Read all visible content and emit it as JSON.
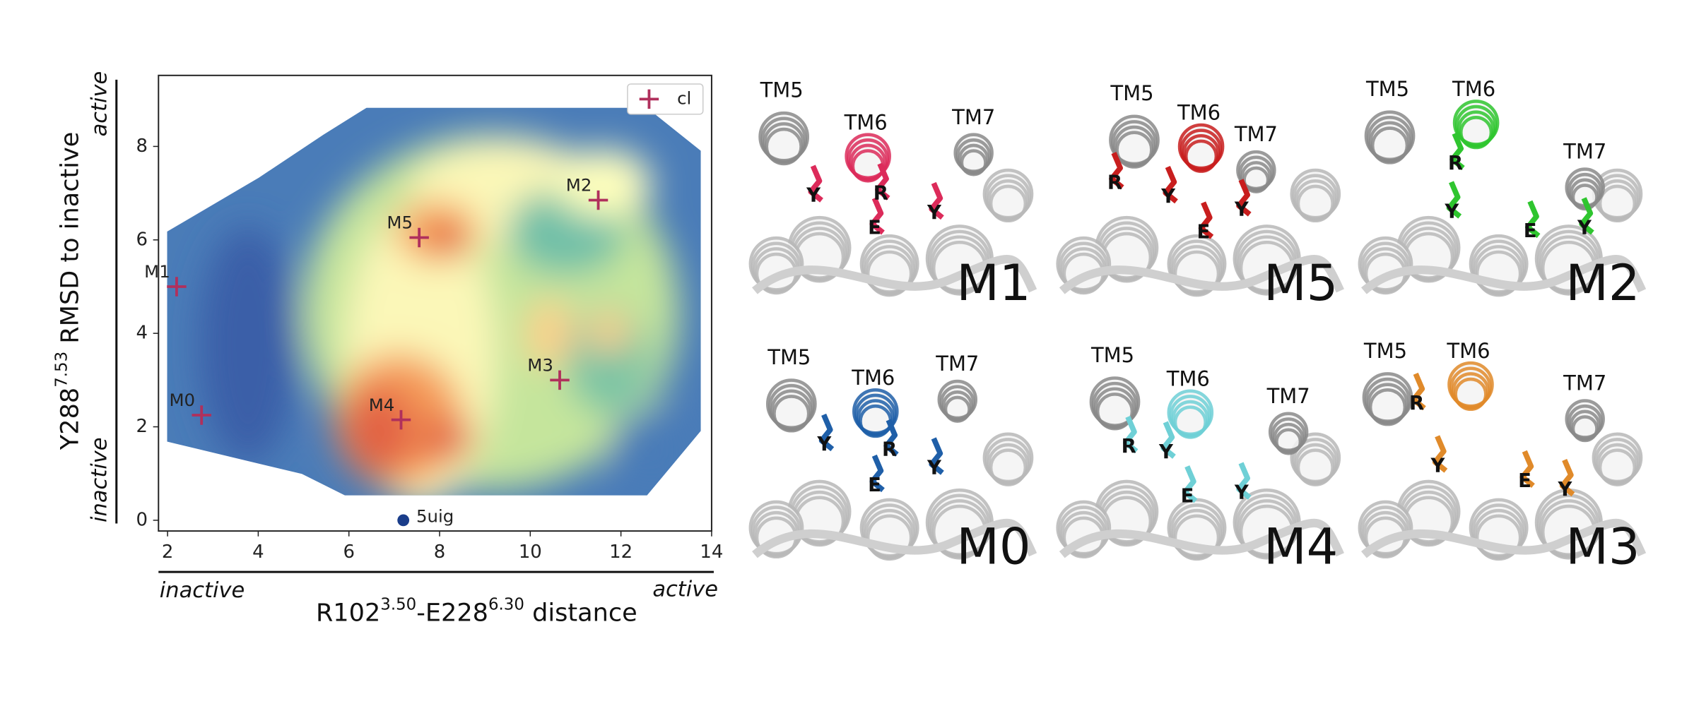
{
  "chart_data": {
    "type": "scatter",
    "xlabel_parts": [
      "R102",
      "3.50",
      "-E228",
      "6.30",
      " distance"
    ],
    "ylabel_parts": [
      "Y288",
      "7.53",
      " RMSD to inactive"
    ],
    "x_annotations": [
      "inactive",
      "active"
    ],
    "y_annotations": [
      "inactive",
      "active"
    ],
    "xlim": [
      1.8,
      14
    ],
    "ylim": [
      -0.23,
      9.52
    ],
    "xticks": [
      2,
      4,
      6,
      8,
      10,
      12,
      14
    ],
    "yticks": [
      0,
      2,
      4,
      6,
      8
    ],
    "legend": "upper right",
    "series": [
      {
        "name": "cl",
        "color": "#b0305c",
        "marker": "plus",
        "labels": [
          "M0",
          "M1",
          "M2",
          "M3",
          "M4",
          "M5"
        ],
        "x": [
          2.75,
          2.2,
          11.5,
          10.65,
          7.15,
          7.55
        ],
        "values": [
          2.25,
          5.0,
          6.85,
          3.0,
          2.15,
          6.05
        ]
      },
      {
        "color": "#1a3d8a",
        "marker": "circle",
        "labels": [
          "5uig"
        ],
        "x": [
          7.2
        ],
        "values": [
          0.0
        ]
      }
    ]
  },
  "panels": [
    {
      "name": "M1",
      "color": "#dc2b5a",
      "labels": [
        "TM5",
        "TM6",
        "TM7",
        "Y",
        "R",
        "E",
        "Y"
      ]
    },
    {
      "name": "M5",
      "color": "#c81e1e",
      "labels": [
        "TM5",
        "TM6",
        "TM7",
        "R",
        "Y",
        "E",
        "Y"
      ]
    },
    {
      "name": "M2",
      "color": "#2fc52f",
      "labels": [
        "TM5",
        "TM6",
        "TM7",
        "R",
        "Y",
        "E",
        "Y"
      ]
    },
    {
      "name": "M0",
      "color": "#1f5fa8",
      "labels": [
        "TM5",
        "TM6",
        "TM7",
        "Y",
        "R",
        "E",
        "Y"
      ]
    },
    {
      "name": "M4",
      "color": "#6fd0d6",
      "labels": [
        "TM5",
        "TM6",
        "TM7",
        "R",
        "Y",
        "E",
        "Y"
      ]
    },
    {
      "name": "M3",
      "color": "#e08a2a",
      "labels": [
        "TM5",
        "TM6",
        "TM7",
        "R",
        "Y",
        "E",
        "Y"
      ]
    }
  ]
}
